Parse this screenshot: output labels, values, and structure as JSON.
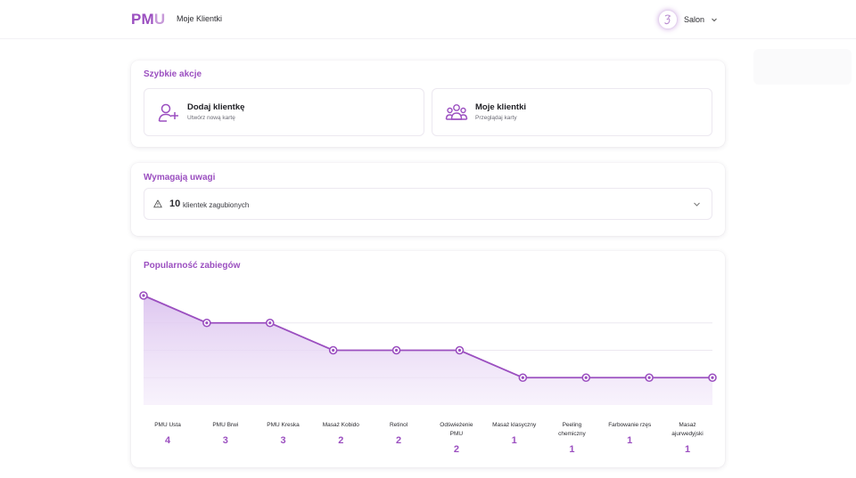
{
  "header": {
    "logo_main": "PM",
    "logo_accent": "U",
    "nav_link": "Moje Klientki",
    "user_name": "Salon"
  },
  "quick_actions": {
    "title": "Szybkie akcje",
    "items": [
      {
        "title": "Dodaj klientkę",
        "subtitle": "Utwórz nową kartę",
        "icon": "user-plus-icon"
      },
      {
        "title": "Moje klientki",
        "subtitle": "Przeglądaj karty",
        "icon": "users-icon"
      }
    ]
  },
  "attention": {
    "title": "Wymagają uwagi",
    "count": "10",
    "label": "klientek zagubionych"
  },
  "popularity": {
    "title": "Popularność zabiegów"
  },
  "colors": {
    "accent": "#9b4fc0",
    "fill": "#e7d6f3"
  },
  "chart_data": {
    "type": "area",
    "categories": [
      "PMU Usta",
      "PMU Brwi",
      "PMU Kreska",
      "Masaż Kobido",
      "Retinol",
      "Odświeżenie PMU",
      "Masaż klasyczny",
      "Peeling chemiczny",
      "Farbowanie rzęs",
      "Masaż ajurwedyjski"
    ],
    "category_lines": [
      [
        "PMU Usta"
      ],
      [
        "PMU Brwi"
      ],
      [
        "PMU Kreska"
      ],
      [
        "Masaż Kobido"
      ],
      [
        "Retinol"
      ],
      [
        "Odświeżenie",
        "PMU"
      ],
      [
        "Masaż klasyczny"
      ],
      [
        "Peeling",
        "chemiczny"
      ],
      [
        "Farbowanie rzęs"
      ],
      [
        "Masaż",
        "ajurwedyjski"
      ]
    ],
    "values": [
      4,
      3,
      3,
      2,
      2,
      2,
      1,
      1,
      1,
      1
    ],
    "ylim": [
      0,
      4
    ],
    "grid": true
  }
}
